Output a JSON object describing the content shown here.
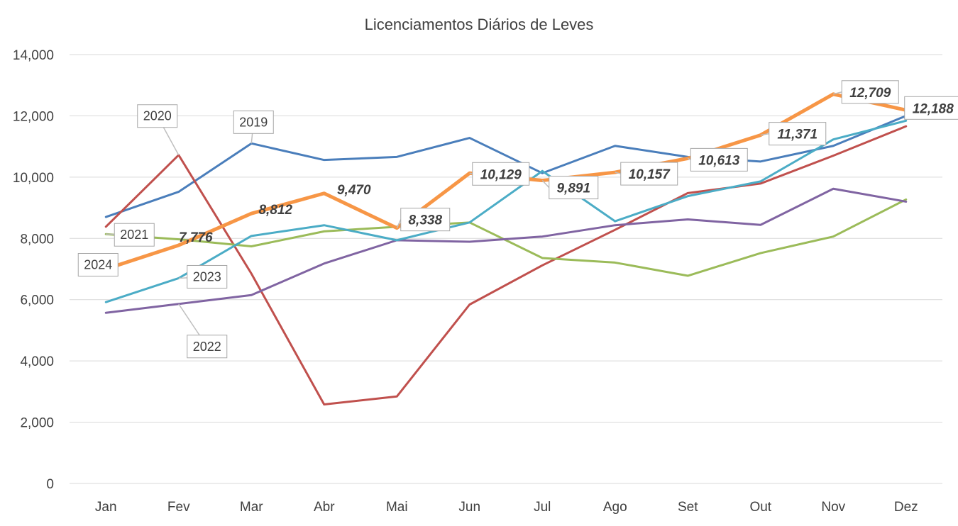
{
  "chart_data": {
    "type": "line",
    "title": "Licenciamentos Diários de Leves",
    "xlabel": "",
    "ylabel": "",
    "ylim": [
      0,
      14000
    ],
    "yticks": [
      0,
      2000,
      4000,
      6000,
      8000,
      10000,
      12000,
      14000
    ],
    "ytick_labels": [
      "0",
      "2,000",
      "4,000",
      "6,000",
      "8,000",
      "10,000",
      "12,000",
      "14,000"
    ],
    "grid": true,
    "legend": "none",
    "categories": [
      "Jan",
      "Fev",
      "Mar",
      "Abr",
      "Mai",
      "Jun",
      "Jul",
      "Ago",
      "Set",
      "Out",
      "Nov",
      "Dez"
    ],
    "series": [
      {
        "name": "2019",
        "color": "#4a7ebb",
        "values": [
          8700,
          9520,
          11100,
          10560,
          10660,
          11280,
          10130,
          11020,
          10660,
          10510,
          11020,
          12000
        ]
      },
      {
        "name": "2020",
        "color": "#c0504d",
        "values": [
          8380,
          10720,
          6850,
          2580,
          2840,
          5840,
          7120,
          8280,
          9480,
          9790,
          10700,
          11660
        ]
      },
      {
        "name": "2021",
        "color": "#9bbb59",
        "values": [
          8140,
          7970,
          7740,
          8230,
          8380,
          8520,
          7360,
          7210,
          6780,
          7520,
          8060,
          9270
        ]
      },
      {
        "name": "2022",
        "color": "#8064a2",
        "values": [
          5570,
          5860,
          6150,
          7180,
          7940,
          7890,
          8060,
          8430,
          8620,
          8440,
          9620,
          9200
        ]
      },
      {
        "name": "2023",
        "color": "#4bacc6",
        "values": [
          5920,
          6700,
          8080,
          8430,
          7940,
          8520,
          10200,
          8560,
          9380,
          9860,
          11230,
          11840
        ]
      },
      {
        "name": "2024",
        "color": "#f79646",
        "values": [
          7000,
          7776,
          8812,
          9470,
          8338,
          10129,
          9891,
          10157,
          10613,
          11371,
          12709,
          12188
        ]
      }
    ],
    "series_callouts": [
      "2019",
      "2020",
      "2021",
      "2022",
      "2023",
      "2024"
    ],
    "data_labels": [
      {
        "index": 1,
        "text": "7,776"
      },
      {
        "index": 2,
        "text": "8,812"
      },
      {
        "index": 3,
        "text": "9,470"
      },
      {
        "index": 4,
        "text": "8,338"
      },
      {
        "index": 5,
        "text": "10,129"
      },
      {
        "index": 6,
        "text": "9,891"
      },
      {
        "index": 7,
        "text": "10,157"
      },
      {
        "index": 8,
        "text": "10,613"
      },
      {
        "index": 9,
        "text": "11,371"
      },
      {
        "index": 10,
        "text": "12,709"
      },
      {
        "index": 11,
        "text": "12,188"
      }
    ]
  }
}
